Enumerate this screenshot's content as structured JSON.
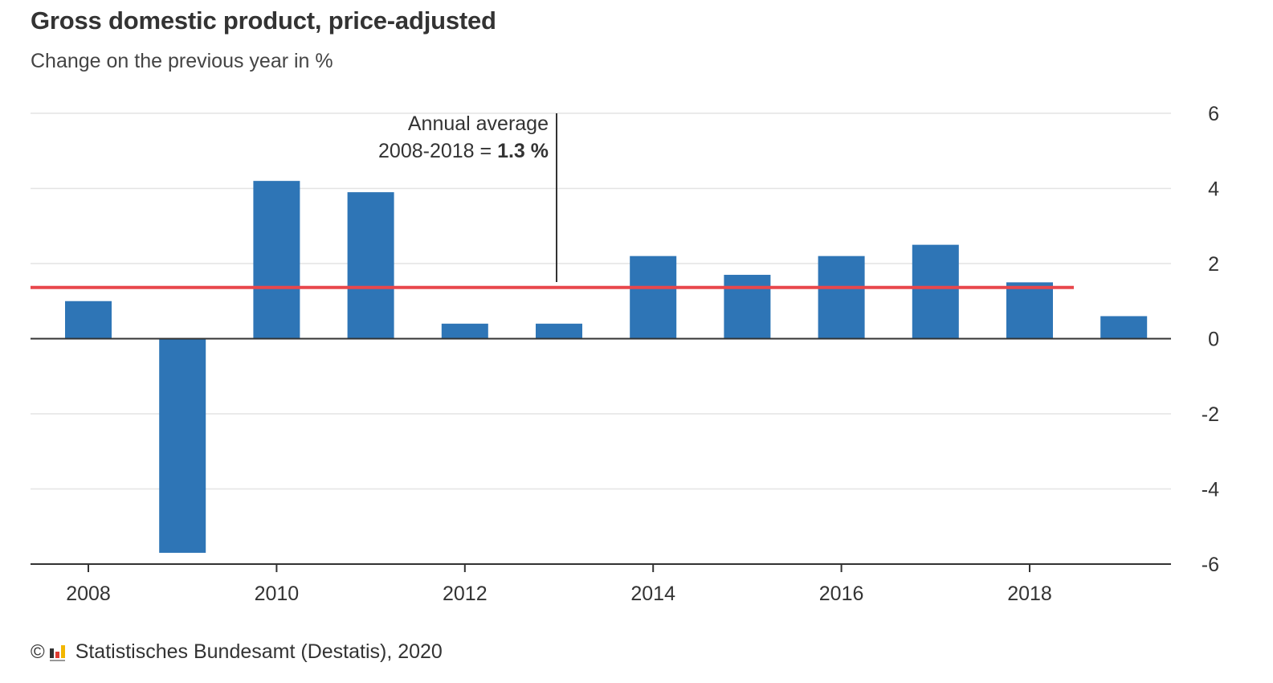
{
  "title": "Gross domestic product, price-adjusted",
  "subtitle": "Change on the previous year in %",
  "footer": {
    "copyright_symbol": "©",
    "source": "Statistisches Bundesamt (Destatis), 2020",
    "logo_icon": "destatis-logo-icon"
  },
  "chart_data": {
    "type": "bar",
    "categories": [
      "2008",
      "2009",
      "2010",
      "2011",
      "2012",
      "2013",
      "2014",
      "2015",
      "2016",
      "2017",
      "2018",
      "2019"
    ],
    "values": [
      1.0,
      -5.7,
      4.2,
      3.9,
      0.4,
      0.4,
      2.2,
      1.7,
      2.2,
      2.5,
      1.5,
      0.6
    ],
    "x_tick_labels": [
      "2008",
      "2010",
      "2012",
      "2014",
      "2016",
      "2018"
    ],
    "y_ticks": [
      6,
      4,
      2,
      0,
      -2,
      -4,
      -6
    ],
    "ylim": [
      -6,
      6
    ],
    "y_axis_position": "right",
    "grid": true,
    "average_line": {
      "value": 1.3,
      "from": "2008",
      "to": "2018",
      "color": "#e8474c"
    },
    "annotation": {
      "line1": "Annual average",
      "line2_prefix": "2008-2018 = ",
      "line2_value": "1.3 %",
      "points_to": "2013"
    },
    "bar_color": "#2e75b6"
  }
}
